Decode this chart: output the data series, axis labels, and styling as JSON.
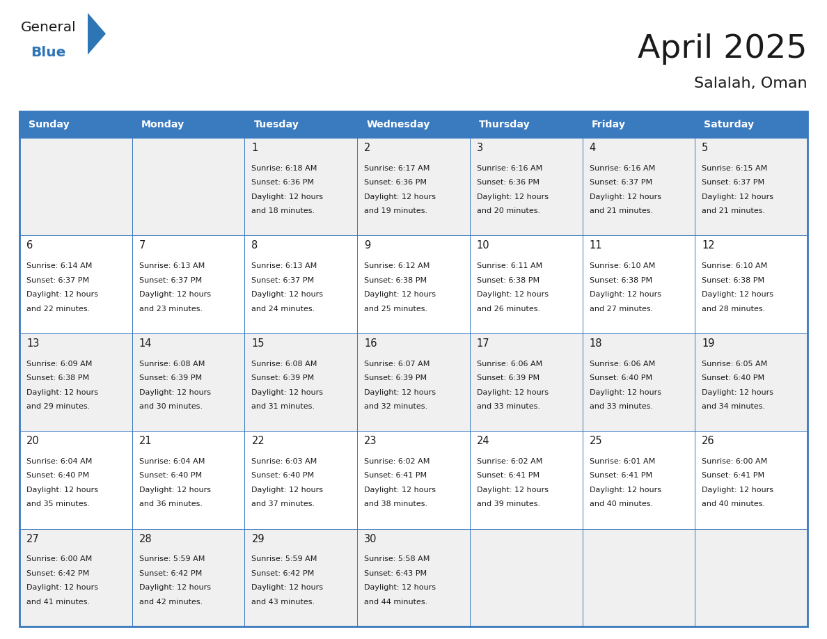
{
  "title": "April 2025",
  "subtitle": "Salalah, Oman",
  "header_bg": "#3a7abf",
  "header_text_color": "#ffffff",
  "row_bg_odd": "#f0f0f0",
  "row_bg_even": "#ffffff",
  "border_color": "#3a7abf",
  "day_names": [
    "Sunday",
    "Monday",
    "Tuesday",
    "Wednesday",
    "Thursday",
    "Friday",
    "Saturday"
  ],
  "days": [
    {
      "row": 0,
      "col": 0,
      "num": "",
      "sunrise": "",
      "sunset": "",
      "daylight1": "",
      "daylight2": ""
    },
    {
      "row": 0,
      "col": 1,
      "num": "",
      "sunrise": "",
      "sunset": "",
      "daylight1": "",
      "daylight2": ""
    },
    {
      "row": 0,
      "col": 2,
      "num": "1",
      "sunrise": "Sunrise: 6:18 AM",
      "sunset": "Sunset: 6:36 PM",
      "daylight1": "Daylight: 12 hours",
      "daylight2": "and 18 minutes."
    },
    {
      "row": 0,
      "col": 3,
      "num": "2",
      "sunrise": "Sunrise: 6:17 AM",
      "sunset": "Sunset: 6:36 PM",
      "daylight1": "Daylight: 12 hours",
      "daylight2": "and 19 minutes."
    },
    {
      "row": 0,
      "col": 4,
      "num": "3",
      "sunrise": "Sunrise: 6:16 AM",
      "sunset": "Sunset: 6:36 PM",
      "daylight1": "Daylight: 12 hours",
      "daylight2": "and 20 minutes."
    },
    {
      "row": 0,
      "col": 5,
      "num": "4",
      "sunrise": "Sunrise: 6:16 AM",
      "sunset": "Sunset: 6:37 PM",
      "daylight1": "Daylight: 12 hours",
      "daylight2": "and 21 minutes."
    },
    {
      "row": 0,
      "col": 6,
      "num": "5",
      "sunrise": "Sunrise: 6:15 AM",
      "sunset": "Sunset: 6:37 PM",
      "daylight1": "Daylight: 12 hours",
      "daylight2": "and 21 minutes."
    },
    {
      "row": 1,
      "col": 0,
      "num": "6",
      "sunrise": "Sunrise: 6:14 AM",
      "sunset": "Sunset: 6:37 PM",
      "daylight1": "Daylight: 12 hours",
      "daylight2": "and 22 minutes."
    },
    {
      "row": 1,
      "col": 1,
      "num": "7",
      "sunrise": "Sunrise: 6:13 AM",
      "sunset": "Sunset: 6:37 PM",
      "daylight1": "Daylight: 12 hours",
      "daylight2": "and 23 minutes."
    },
    {
      "row": 1,
      "col": 2,
      "num": "8",
      "sunrise": "Sunrise: 6:13 AM",
      "sunset": "Sunset: 6:37 PM",
      "daylight1": "Daylight: 12 hours",
      "daylight2": "and 24 minutes."
    },
    {
      "row": 1,
      "col": 3,
      "num": "9",
      "sunrise": "Sunrise: 6:12 AM",
      "sunset": "Sunset: 6:38 PM",
      "daylight1": "Daylight: 12 hours",
      "daylight2": "and 25 minutes."
    },
    {
      "row": 1,
      "col": 4,
      "num": "10",
      "sunrise": "Sunrise: 6:11 AM",
      "sunset": "Sunset: 6:38 PM",
      "daylight1": "Daylight: 12 hours",
      "daylight2": "and 26 minutes."
    },
    {
      "row": 1,
      "col": 5,
      "num": "11",
      "sunrise": "Sunrise: 6:10 AM",
      "sunset": "Sunset: 6:38 PM",
      "daylight1": "Daylight: 12 hours",
      "daylight2": "and 27 minutes."
    },
    {
      "row": 1,
      "col": 6,
      "num": "12",
      "sunrise": "Sunrise: 6:10 AM",
      "sunset": "Sunset: 6:38 PM",
      "daylight1": "Daylight: 12 hours",
      "daylight2": "and 28 minutes."
    },
    {
      "row": 2,
      "col": 0,
      "num": "13",
      "sunrise": "Sunrise: 6:09 AM",
      "sunset": "Sunset: 6:38 PM",
      "daylight1": "Daylight: 12 hours",
      "daylight2": "and 29 minutes."
    },
    {
      "row": 2,
      "col": 1,
      "num": "14",
      "sunrise": "Sunrise: 6:08 AM",
      "sunset": "Sunset: 6:39 PM",
      "daylight1": "Daylight: 12 hours",
      "daylight2": "and 30 minutes."
    },
    {
      "row": 2,
      "col": 2,
      "num": "15",
      "sunrise": "Sunrise: 6:08 AM",
      "sunset": "Sunset: 6:39 PM",
      "daylight1": "Daylight: 12 hours",
      "daylight2": "and 31 minutes."
    },
    {
      "row": 2,
      "col": 3,
      "num": "16",
      "sunrise": "Sunrise: 6:07 AM",
      "sunset": "Sunset: 6:39 PM",
      "daylight1": "Daylight: 12 hours",
      "daylight2": "and 32 minutes."
    },
    {
      "row": 2,
      "col": 4,
      "num": "17",
      "sunrise": "Sunrise: 6:06 AM",
      "sunset": "Sunset: 6:39 PM",
      "daylight1": "Daylight: 12 hours",
      "daylight2": "and 33 minutes."
    },
    {
      "row": 2,
      "col": 5,
      "num": "18",
      "sunrise": "Sunrise: 6:06 AM",
      "sunset": "Sunset: 6:40 PM",
      "daylight1": "Daylight: 12 hours",
      "daylight2": "and 33 minutes."
    },
    {
      "row": 2,
      "col": 6,
      "num": "19",
      "sunrise": "Sunrise: 6:05 AM",
      "sunset": "Sunset: 6:40 PM",
      "daylight1": "Daylight: 12 hours",
      "daylight2": "and 34 minutes."
    },
    {
      "row": 3,
      "col": 0,
      "num": "20",
      "sunrise": "Sunrise: 6:04 AM",
      "sunset": "Sunset: 6:40 PM",
      "daylight1": "Daylight: 12 hours",
      "daylight2": "and 35 minutes."
    },
    {
      "row": 3,
      "col": 1,
      "num": "21",
      "sunrise": "Sunrise: 6:04 AM",
      "sunset": "Sunset: 6:40 PM",
      "daylight1": "Daylight: 12 hours",
      "daylight2": "and 36 minutes."
    },
    {
      "row": 3,
      "col": 2,
      "num": "22",
      "sunrise": "Sunrise: 6:03 AM",
      "sunset": "Sunset: 6:40 PM",
      "daylight1": "Daylight: 12 hours",
      "daylight2": "and 37 minutes."
    },
    {
      "row": 3,
      "col": 3,
      "num": "23",
      "sunrise": "Sunrise: 6:02 AM",
      "sunset": "Sunset: 6:41 PM",
      "daylight1": "Daylight: 12 hours",
      "daylight2": "and 38 minutes."
    },
    {
      "row": 3,
      "col": 4,
      "num": "24",
      "sunrise": "Sunrise: 6:02 AM",
      "sunset": "Sunset: 6:41 PM",
      "daylight1": "Daylight: 12 hours",
      "daylight2": "and 39 minutes."
    },
    {
      "row": 3,
      "col": 5,
      "num": "25",
      "sunrise": "Sunrise: 6:01 AM",
      "sunset": "Sunset: 6:41 PM",
      "daylight1": "Daylight: 12 hours",
      "daylight2": "and 40 minutes."
    },
    {
      "row": 3,
      "col": 6,
      "num": "26",
      "sunrise": "Sunrise: 6:00 AM",
      "sunset": "Sunset: 6:41 PM",
      "daylight1": "Daylight: 12 hours",
      "daylight2": "and 40 minutes."
    },
    {
      "row": 4,
      "col": 0,
      "num": "27",
      "sunrise": "Sunrise: 6:00 AM",
      "sunset": "Sunset: 6:42 PM",
      "daylight1": "Daylight: 12 hours",
      "daylight2": "and 41 minutes."
    },
    {
      "row": 4,
      "col": 1,
      "num": "28",
      "sunrise": "Sunrise: 5:59 AM",
      "sunset": "Sunset: 6:42 PM",
      "daylight1": "Daylight: 12 hours",
      "daylight2": "and 42 minutes."
    },
    {
      "row": 4,
      "col": 2,
      "num": "29",
      "sunrise": "Sunrise: 5:59 AM",
      "sunset": "Sunset: 6:42 PM",
      "daylight1": "Daylight: 12 hours",
      "daylight2": "and 43 minutes."
    },
    {
      "row": 4,
      "col": 3,
      "num": "30",
      "sunrise": "Sunrise: 5:58 AM",
      "sunset": "Sunset: 6:43 PM",
      "daylight1": "Daylight: 12 hours",
      "daylight2": "and 44 minutes."
    },
    {
      "row": 4,
      "col": 4,
      "num": "",
      "sunrise": "",
      "sunset": "",
      "daylight1": "",
      "daylight2": ""
    },
    {
      "row": 4,
      "col": 5,
      "num": "",
      "sunrise": "",
      "sunset": "",
      "daylight1": "",
      "daylight2": ""
    },
    {
      "row": 4,
      "col": 6,
      "num": "",
      "sunrise": "",
      "sunset": "",
      "daylight1": "",
      "daylight2": ""
    }
  ],
  "num_rows": 5,
  "num_cols": 7,
  "text_color": "#1a1a1a",
  "logo_general_color": "#1a1a1a",
  "logo_blue_color": "#2e75b6",
  "fig_width": 11.88,
  "fig_height": 9.18,
  "dpi": 100
}
